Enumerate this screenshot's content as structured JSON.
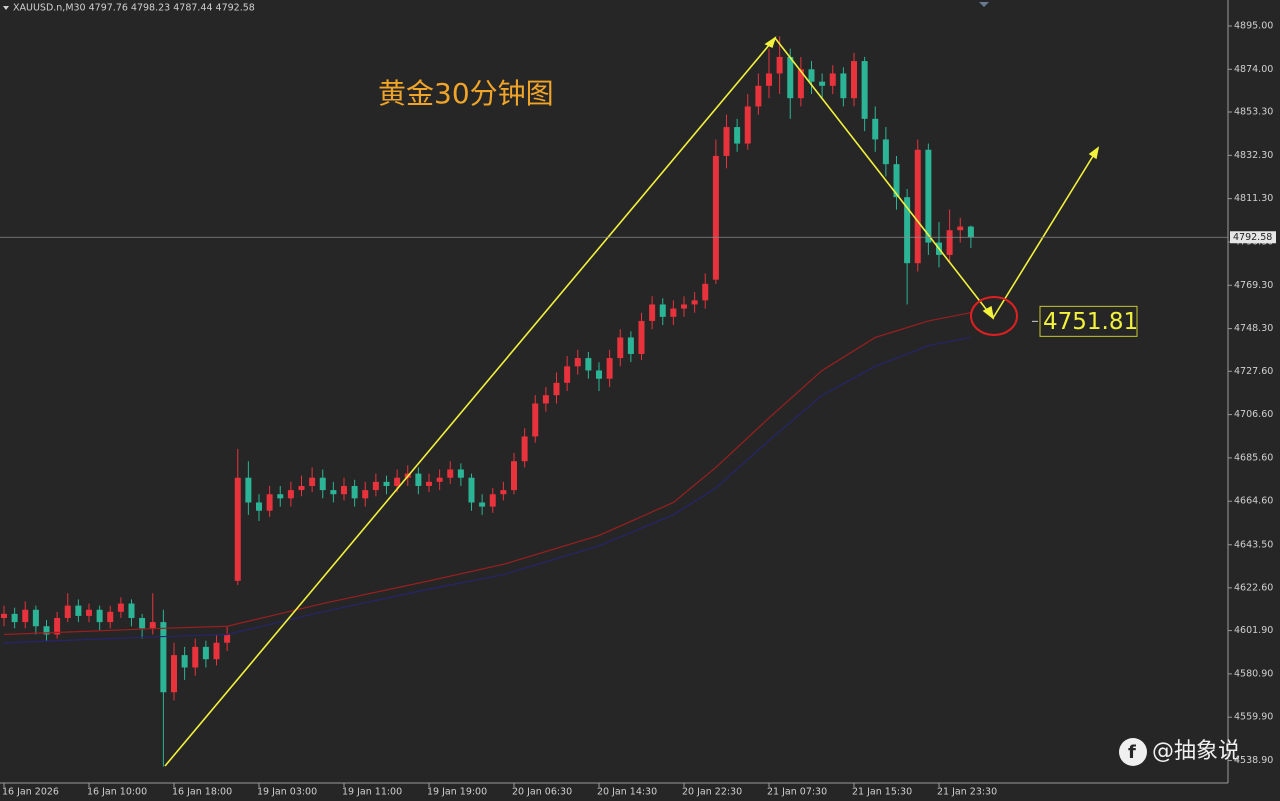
{
  "chart_data": {
    "type": "candlestick",
    "header": "XAUUSD.n,M30 4797.76 4798.23 4787.44 4792.58",
    "title": "黄金30分钟图",
    "annotation": 4751.81,
    "current_price": 4792.58,
    "watermark": "@抽象说",
    "up_color": "#e8323c",
    "down_color": "#2bb596",
    "categories": [
      "16 Jan 2026",
      null,
      null,
      null,
      null,
      null,
      null,
      null,
      "16 Jan 10:00",
      null,
      null,
      null,
      null,
      null,
      null,
      null,
      "16 Jan 18:00",
      null,
      null,
      null,
      null,
      null,
      null,
      null,
      "19 Jan 03:00",
      null,
      null,
      null,
      null,
      null,
      null,
      null,
      "19 Jan 11:00",
      null,
      null,
      null,
      null,
      null,
      null,
      null,
      "19 Jan 19:00",
      null,
      null,
      null,
      null,
      null,
      null,
      null,
      "20 Jan 06:30",
      null,
      null,
      null,
      null,
      null,
      null,
      null,
      "20 Jan 14:30",
      null,
      null,
      null,
      null,
      null,
      null,
      null,
      "20 Jan 22:30",
      null,
      null,
      null,
      null,
      null,
      null,
      null,
      "21 Jan 07:30",
      null,
      null,
      null,
      null,
      null,
      null,
      null,
      "21 Jan 15:30",
      null,
      null,
      null,
      null,
      null,
      null,
      null,
      "21 Jan 23:30",
      null,
      null,
      null
    ],
    "open": [
      4608,
      4610,
      4606,
      4612,
      4604,
      4600,
      4608,
      4614,
      4609,
      4612,
      4606,
      4611,
      4615,
      4608,
      4603,
      4606,
      4572,
      4590,
      4584,
      4594,
      4588,
      4596,
      4626,
      4676,
      4664,
      4660,
      4668,
      4666,
      4670,
      4672,
      4676,
      4670,
      4668,
      4672,
      4666,
      4670,
      4674,
      4672,
      4676,
      4678,
      4672,
      4674,
      4676,
      4680,
      4676,
      4664,
      4662,
      4668,
      4670,
      4684,
      4696,
      4712,
      4716,
      4722,
      4730,
      4734,
      4728,
      4724,
      4734,
      4744,
      4736,
      4752,
      4760,
      4754,
      4758,
      4760,
      4762,
      4772,
      4832,
      4846,
      4838,
      4856,
      4866,
      4872,
      4880,
      4860,
      4874,
      4868,
      4866,
      4872,
      4860,
      4878,
      4850,
      4840,
      4828,
      4812,
      4780,
      4835,
      4790,
      4784,
      4796,
      4797.76
    ],
    "high": [
      4614,
      4613,
      4616,
      4614,
      4607,
      4611,
      4620,
      4617,
      4615,
      4614,
      4614,
      4618,
      4617,
      4610,
      4620,
      4612,
      4596,
      4594,
      4598,
      4597,
      4600,
      4604,
      4690,
      4684,
      4668,
      4672,
      4672,
      4674,
      4677,
      4681,
      4680,
      4674,
      4676,
      4675,
      4674,
      4678,
      4677,
      4680,
      4682,
      4681,
      4678,
      4680,
      4684,
      4683,
      4678,
      4668,
      4671,
      4674,
      4688,
      4700,
      4716,
      4720,
      4727,
      4735,
      4738,
      4737,
      4732,
      4738,
      4748,
      4747,
      4756,
      4764,
      4763,
      4762,
      4764,
      4766,
      4775,
      4840,
      4852,
      4850,
      4862,
      4872,
      4884,
      4890,
      4884,
      4880,
      4878,
      4872,
      4876,
      4875,
      4882,
      4880,
      4856,
      4846,
      4832,
      4816,
      4840,
      4838,
      4800,
      4806,
      4802,
      4798.23
    ],
    "low": [
      4604,
      4603,
      4603,
      4600,
      4597,
      4598,
      4606,
      4606,
      4606,
      4602,
      4603,
      4608,
      4604,
      4598,
      4600,
      4536,
      4568,
      4578,
      4580,
      4584,
      4585,
      4592,
      4624,
      4658,
      4655,
      4657,
      4662,
      4662,
      4667,
      4669,
      4666,
      4664,
      4665,
      4662,
      4662,
      4667,
      4668,
      4669,
      4672,
      4668,
      4669,
      4670,
      4673,
      4672,
      4660,
      4658,
      4659,
      4665,
      4668,
      4681,
      4693,
      4708,
      4712,
      4718,
      4726,
      4724,
      4718,
      4720,
      4730,
      4732,
      4733,
      4748,
      4750,
      4750,
      4754,
      4756,
      4758,
      4770,
      4826,
      4834,
      4835,
      4852,
      4860,
      4862,
      4850,
      4856,
      4862,
      4860,
      4862,
      4856,
      4856,
      4844,
      4834,
      4822,
      4806,
      4760,
      4776,
      4784,
      4778,
      4780,
      4790,
      4787.44
    ],
    "close": [
      4610,
      4606,
      4612,
      4604,
      4600,
      4608,
      4614,
      4609,
      4612,
      4606,
      4611,
      4615,
      4608,
      4603,
      4606,
      4572,
      4590,
      4584,
      4594,
      4588,
      4596,
      4600,
      4676,
      4664,
      4660,
      4668,
      4666,
      4670,
      4672,
      4676,
      4670,
      4668,
      4672,
      4666,
      4670,
      4674,
      4672,
      4676,
      4678,
      4672,
      4674,
      4676,
      4680,
      4676,
      4664,
      4662,
      4668,
      4670,
      4684,
      4696,
      4712,
      4716,
      4722,
      4730,
      4734,
      4728,
      4724,
      4734,
      4744,
      4736,
      4752,
      4760,
      4754,
      4758,
      4760,
      4762,
      4770,
      4832,
      4846,
      4838,
      4856,
      4866,
      4872,
      4880,
      4860,
      4874,
      4868,
      4866,
      4872,
      4860,
      4878,
      4850,
      4840,
      4828,
      4812,
      4780,
      4835,
      4790,
      4784,
      4796,
      4797.76,
      4792.58
    ],
    "series": [
      {
        "color": "#9a1f1f",
        "x": [
          0,
          10,
          15,
          21,
          30,
          40,
          47,
          56,
          63,
          67,
          72,
          77,
          82,
          87,
          91
        ],
        "values": [
          4600,
          4602,
          4603,
          4604,
          4615,
          4626,
          4634,
          4648,
          4664,
          4681,
          4705,
          4728,
          4744,
          4752,
          4756
        ]
      },
      {
        "color": "#25256e",
        "x": [
          0,
          10,
          15,
          21,
          30,
          40,
          47,
          56,
          63,
          67,
          72,
          77,
          82,
          87,
          91
        ],
        "values": [
          4596,
          4598,
          4599,
          4600,
          4611,
          4622,
          4629,
          4643,
          4658,
          4671,
          4694,
          4716,
          4730,
          4740,
          4744
        ]
      }
    ],
    "ylim": [
      4528,
      4907.6
    ],
    "yticks": [
      {
        "value": 4895,
        "label": "4895.00"
      },
      {
        "value": 4874,
        "label": "4874.00"
      },
      {
        "value": 4853.3,
        "label": "4853.30"
      },
      {
        "value": 4832.3,
        "label": "4832.30"
      },
      {
        "value": 4811.3,
        "label": "4811.30"
      },
      {
        "value": 4790.3,
        "label": "4790.30"
      },
      {
        "value": 4769.3,
        "label": "4769.30"
      },
      {
        "value": 4748.3,
        "label": "4748.30"
      },
      {
        "value": 4727.6,
        "label": "4727.60"
      },
      {
        "value": 4706.6,
        "label": "4706.60"
      },
      {
        "value": 4685.6,
        "label": "4685.60"
      },
      {
        "value": 4664.6,
        "label": "4664.60"
      },
      {
        "value": 4643.5,
        "label": "4643.50"
      },
      {
        "value": 4622.6,
        "label": "4622.60"
      },
      {
        "value": 4601.9,
        "label": "4601.90"
      },
      {
        "value": 4580.9,
        "label": "4580.90"
      },
      {
        "value": 4559.9,
        "label": "4559.90"
      },
      {
        "value": 4538.9,
        "label": "4538.90"
      }
    ]
  }
}
